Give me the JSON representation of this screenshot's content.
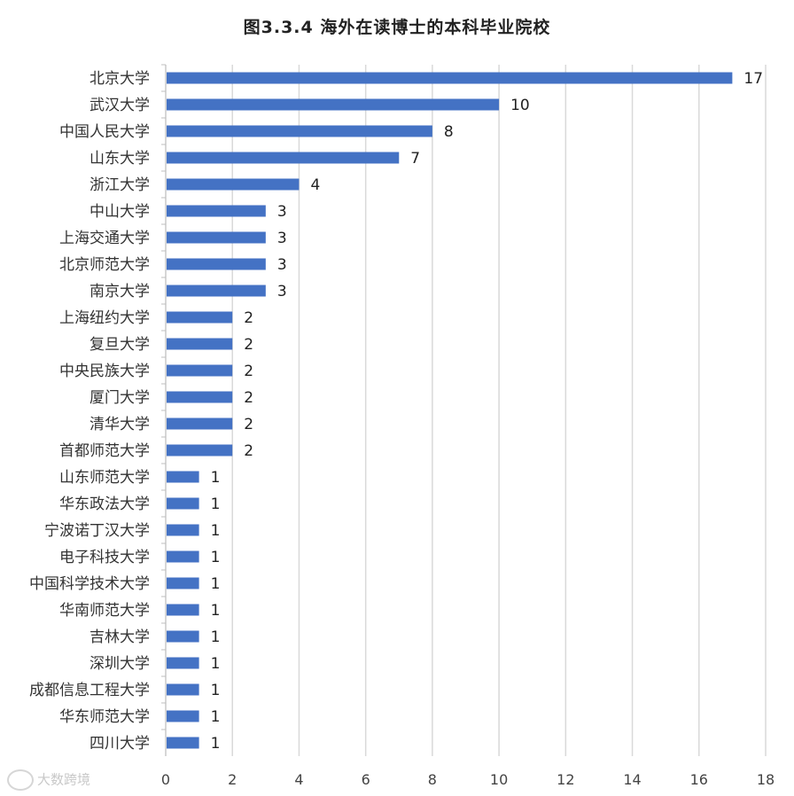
{
  "title": "图3.3.4 海外在读博士的本科毕业院校",
  "watermark": "大数跨境",
  "chart_data": {
    "type": "bar",
    "orientation": "horizontal",
    "title": "图3.3.4 海外在读博士的本科毕业院校",
    "categories": [
      "北京大学",
      "武汉大学",
      "中国人民大学",
      "山东大学",
      "浙江大学",
      "中山大学",
      "上海交通大学",
      "北京师范大学",
      "南京大学",
      "上海纽约大学",
      "复旦大学",
      "中央民族大学",
      "厦门大学",
      "清华大学",
      "首都师范大学",
      "山东师范大学",
      "华东政法大学",
      "宁波诺丁汉大学",
      "电子科技大学",
      "中国科学技术大学",
      "华南师范大学",
      "吉林大学",
      "深圳大学",
      "成都信息工程大学",
      "华东师范大学",
      "四川大学"
    ],
    "values": [
      17,
      10,
      8,
      7,
      4,
      3,
      3,
      3,
      3,
      2,
      2,
      2,
      2,
      2,
      2,
      1,
      1,
      1,
      1,
      1,
      1,
      1,
      1,
      1,
      1,
      1
    ],
    "xlim": [
      0,
      18
    ],
    "xticks": [
      0,
      2,
      4,
      6,
      8,
      10,
      12,
      14,
      16,
      18
    ],
    "grid": true,
    "bar_color": "#4472c4",
    "grid_color": "#d9d9d9",
    "data_labels": true
  }
}
